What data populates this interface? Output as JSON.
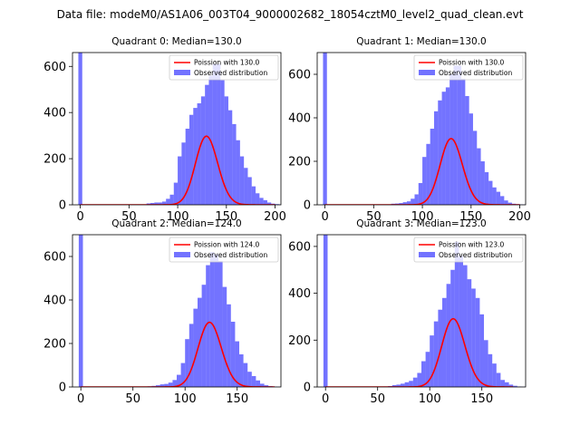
{
  "figure": {
    "suptitle": "Data file: modeM0/AS1A06_003T04_9000002682_18054cztM0_level2_quad_clean.evt"
  },
  "colors": {
    "hist_fill": "#0000ff",
    "hist_alpha": 0.55,
    "poisson_line": "#ff0000"
  },
  "chart_data": [
    {
      "type": "bar",
      "title": "Quadrant 0: Median=130.0",
      "xlim": [
        -8,
        206
      ],
      "ylim": [
        0,
        660
      ],
      "xticks": [
        0,
        50,
        100,
        150,
        200
      ],
      "yticks": [
        0,
        200,
        400,
        600
      ],
      "bin_width": 4,
      "zero_bin": {
        "x": 0,
        "value": 660
      },
      "bins_start": 52,
      "values": [
        0,
        1,
        1,
        2,
        6,
        8,
        10,
        10,
        14,
        26,
        44,
        96,
        210,
        270,
        330,
        390,
        420,
        440,
        470,
        520,
        560,
        610,
        610,
        540,
        470,
        410,
        350,
        280,
        210,
        160,
        120,
        80,
        50,
        30,
        20,
        10,
        5,
        3,
        2,
        1,
        0,
        0
      ],
      "poisson_lambda": 130.0,
      "poisson_scale": 8500,
      "curve_x_max": 200,
      "legend": [
        "Poission with 130.0",
        "Observed distribution"
      ],
      "legend_position": "top-right"
    },
    {
      "type": "bar",
      "title": "Quadrant 1: Median=130.0",
      "xlim": [
        -8,
        206
      ],
      "ylim": [
        0,
        700
      ],
      "xticks": [
        0,
        50,
        100,
        150,
        200
      ],
      "yticks": [
        0,
        200,
        400,
        600
      ],
      "bin_width": 4,
      "zero_bin": {
        "x": 0,
        "value": 700
      },
      "bins_start": 52,
      "values": [
        0,
        1,
        1,
        2,
        5,
        6,
        8,
        12,
        16,
        28,
        48,
        100,
        220,
        280,
        350,
        430,
        480,
        520,
        540,
        600,
        640,
        640,
        580,
        500,
        420,
        340,
        260,
        200,
        150,
        110,
        80,
        60,
        40,
        20,
        10,
        5,
        3,
        2,
        1,
        0,
        0,
        0
      ],
      "poisson_lambda": 130.0,
      "poisson_scale": 8700,
      "curve_x_max": 200,
      "legend": [
        "Poission with 130.0",
        "Observed distribution"
      ],
      "legend_position": "top-right"
    },
    {
      "type": "bar",
      "title": "Quadrant 2: Median=124.0",
      "xlim": [
        -8,
        192
      ],
      "ylim": [
        0,
        700
      ],
      "xticks": [
        0,
        50,
        100,
        150
      ],
      "yticks": [
        0,
        200,
        400,
        600
      ],
      "bin_width": 4,
      "zero_bin": {
        "x": 0,
        "value": 700
      },
      "bins_start": 52,
      "values": [
        0,
        1,
        2,
        3,
        5,
        8,
        12,
        14,
        20,
        32,
        56,
        110,
        220,
        290,
        360,
        410,
        470,
        560,
        620,
        610,
        580,
        460,
        380,
        300,
        210,
        150,
        110,
        70,
        50,
        30,
        15,
        8,
        4,
        2,
        1,
        0
      ],
      "poisson_lambda": 124.0,
      "poisson_scale": 8300,
      "curve_x_max": 186,
      "legend": [
        "Poission with 124.0",
        "Observed distribution"
      ],
      "legend_position": "top-right"
    },
    {
      "type": "bar",
      "title": "Quadrant 3: Median=123.0",
      "xlim": [
        -8,
        192
      ],
      "ylim": [
        0,
        650
      ],
      "xticks": [
        0,
        50,
        100,
        150
      ],
      "yticks": [
        0,
        200,
        400,
        600
      ],
      "bin_width": 4,
      "zero_bin": {
        "x": 0,
        "value": 650
      },
      "bins_start": 52,
      "values": [
        0,
        2,
        4,
        8,
        10,
        14,
        20,
        26,
        40,
        60,
        110,
        150,
        220,
        280,
        330,
        380,
        440,
        500,
        620,
        560,
        520,
        460,
        420,
        380,
        310,
        200,
        140,
        100,
        60,
        30,
        20,
        10,
        5,
        2,
        1,
        0
      ],
      "poisson_lambda": 123.0,
      "poisson_scale": 8100,
      "curve_x_max": 180,
      "legend": [
        "Poission with 123.0",
        "Observed distribution"
      ],
      "legend_position": "top-right"
    }
  ]
}
